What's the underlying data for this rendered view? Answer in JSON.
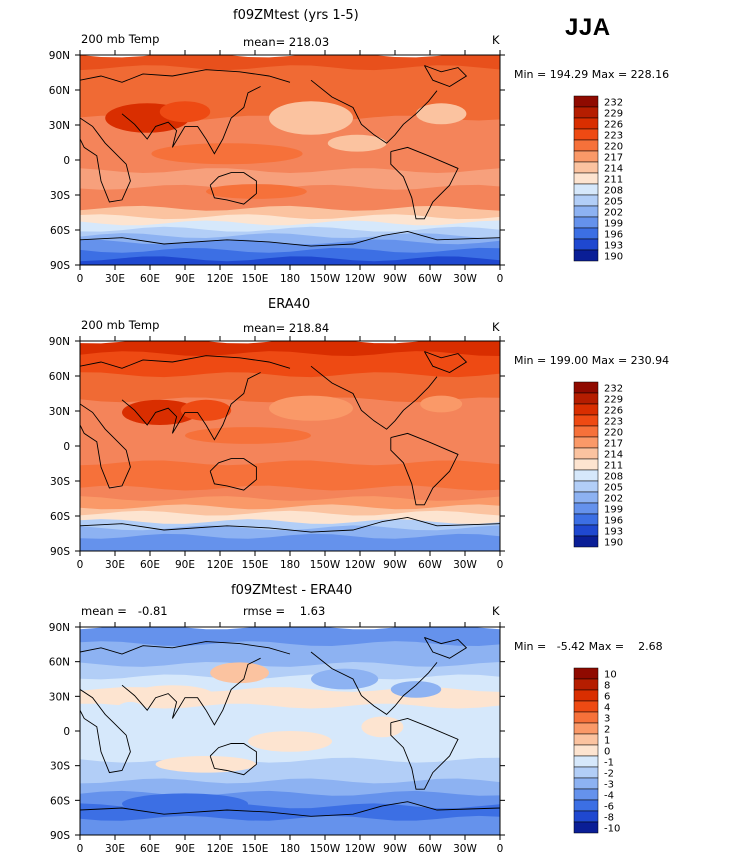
{
  "season": "JJA",
  "chart_data": [
    {
      "type": "heatmap",
      "title": "f09ZMtest (yrs 1-5)",
      "left_label": "200 mb Temp",
      "center_label": "mean= 218.03",
      "units": "K",
      "min_max": "Min = 194.29 Max = 228.16",
      "x_ticks": [
        "0",
        "30E",
        "60E",
        "90E",
        "120E",
        "150E",
        "180",
        "150W",
        "120W",
        "90W",
        "60W",
        "30W",
        "0"
      ],
      "y_ticks": [
        "90N",
        "60N",
        "30N",
        "0",
        "30S",
        "60S",
        "90S"
      ],
      "colorbar_levels": [
        "232",
        "229",
        "226",
        "223",
        "220",
        "217",
        "214",
        "211",
        "208",
        "205",
        "202",
        "199",
        "196",
        "193",
        "190"
      ],
      "colorbar_colors": [
        "#8f0a00",
        "#b51d00",
        "#d92e00",
        "#ee4a13",
        "#f6713a",
        "#fa9968",
        "#fbc3a0",
        "#fde4d0",
        "#d6e8fb",
        "#b2cef7",
        "#8db2f2",
        "#6592ec",
        "#3c6fe4",
        "#1f48d0",
        "#0a1e96"
      ]
    },
    {
      "type": "heatmap",
      "title": "ERA40",
      "left_label": "200 mb Temp",
      "center_label": "mean= 218.84",
      "units": "K",
      "min_max": "Min = 199.00 Max = 230.94",
      "x_ticks": [
        "0",
        "30E",
        "60E",
        "90E",
        "120E",
        "150E",
        "180",
        "150W",
        "120W",
        "90W",
        "60W",
        "30W",
        "0"
      ],
      "y_ticks": [
        "90N",
        "60N",
        "30N",
        "0",
        "30S",
        "60S",
        "90S"
      ],
      "colorbar_levels": [
        "232",
        "229",
        "226",
        "223",
        "220",
        "217",
        "214",
        "211",
        "208",
        "205",
        "202",
        "199",
        "196",
        "193",
        "190"
      ],
      "colorbar_colors": [
        "#8f0a00",
        "#b51d00",
        "#d92e00",
        "#ee4a13",
        "#f6713a",
        "#fa9968",
        "#fbc3a0",
        "#fde4d0",
        "#d6e8fb",
        "#b2cef7",
        "#8db2f2",
        "#6592ec",
        "#3c6fe4",
        "#1f48d0",
        "#0a1e96"
      ]
    },
    {
      "type": "heatmap",
      "title": "f09ZMtest - ERA40",
      "left_label": "mean =   -0.81",
      "center_label": "rmse =    1.63",
      "units": "K",
      "min_max": "Min =   -5.42 Max =    2.68",
      "x_ticks": [
        "0",
        "30E",
        "60E",
        "90E",
        "120E",
        "150E",
        "180",
        "150W",
        "120W",
        "90W",
        "60W",
        "30W",
        "0"
      ],
      "y_ticks": [
        "90N",
        "60N",
        "30N",
        "0",
        "30S",
        "60S",
        "90S"
      ],
      "colorbar_levels": [
        "10",
        "8",
        "6",
        "4",
        "3",
        "2",
        "1",
        "0",
        "-1",
        "-2",
        "-3",
        "-4",
        "-6",
        "-8",
        "-10"
      ],
      "colorbar_colors": [
        "#8f0a00",
        "#b51d00",
        "#d92e00",
        "#ee4a13",
        "#f6713a",
        "#fa9968",
        "#fbc3a0",
        "#fde4d0",
        "#d6e8fb",
        "#b2cef7",
        "#8db2f2",
        "#6592ec",
        "#3c6fe4",
        "#1f48d0",
        "#0a1e96"
      ]
    }
  ]
}
